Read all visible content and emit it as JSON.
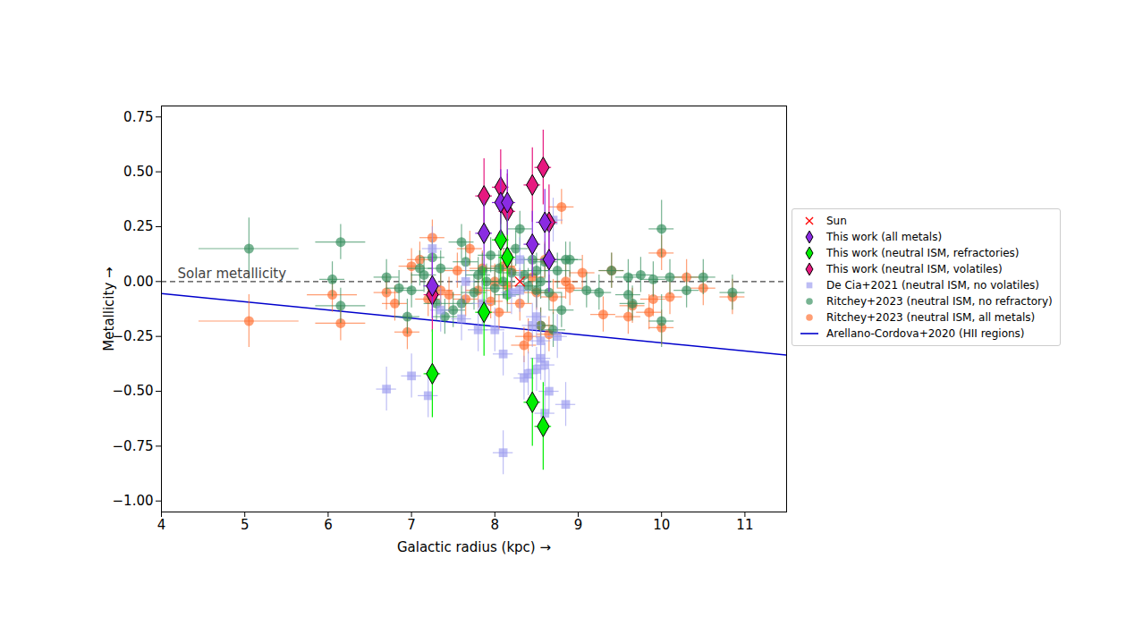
{
  "chart_data": {
    "type": "scatter",
    "xlabel": "Galactic radius (kpc)",
    "ylabel": "Metallicity",
    "xlim": [
      4,
      11.5
    ],
    "ylim": [
      -1.05,
      0.8
    ],
    "xticks": [
      4,
      5,
      6,
      7,
      8,
      9,
      10,
      11
    ],
    "yticks": [
      {
        "value": -1.0,
        "label": "−1.00"
      },
      {
        "value": -0.75,
        "label": "−0.75"
      },
      {
        "value": -0.5,
        "label": "−0.50"
      },
      {
        "value": -0.25,
        "label": "−0.25"
      },
      {
        "value": 0,
        "label": "0.00"
      },
      {
        "value": 0.25,
        "label": "0.25"
      },
      {
        "value": 0.5,
        "label": "0.50"
      },
      {
        "value": 0.75,
        "label": "0.75"
      }
    ],
    "grid": false,
    "legend": "right",
    "hline": {
      "y": 0,
      "label": "Solar metallicity"
    },
    "series": [
      {
        "name": "Sun",
        "marker": "x",
        "color": "#ff0000",
        "x": [
          8.3
        ],
        "values": [
          0
        ]
      },
      {
        "name": "This work (all metals)",
        "marker": "diamond",
        "color": "#8a2be2",
        "x": [
          7.25,
          7.87,
          8.07,
          8.15,
          8.45,
          8.6,
          8.65
        ],
        "values": [
          -0.02,
          0.22,
          0.36,
          0.36,
          0.17,
          0.27,
          0.1
        ],
        "xerr": 0.1,
        "yerr": 0.15
      },
      {
        "name": "This work (neutral ISM, refractories)",
        "marker": "diamond",
        "color": "#00ee00",
        "x": [
          7.25,
          7.87,
          8.07,
          8.15,
          8.45,
          8.58
        ],
        "values": [
          -0.42,
          -0.14,
          0.19,
          0.11,
          -0.55,
          -0.66
        ],
        "xerr": 0.1,
        "yerr": 0.2
      },
      {
        "name": "This work (neutral ISM, volatiles)",
        "marker": "diamond",
        "color": "#e6197f",
        "x": [
          7.25,
          7.87,
          8.07,
          8.15,
          8.45,
          8.58,
          8.65
        ],
        "values": [
          -0.06,
          0.39,
          0.43,
          0.32,
          0.44,
          0.52,
          0.27
        ],
        "xerr": 0.1,
        "yerr": 0.17
      },
      {
        "name": "De Cia+2021 (neutral ISM, no volatiles)",
        "marker": "square",
        "color": "#9999ee",
        "x": [
          6.7,
          7.0,
          7.2,
          7.25,
          7.35,
          7.6,
          7.65,
          7.8,
          7.85,
          8.0,
          8.1,
          8.1,
          8.2,
          8.3,
          8.3,
          8.35,
          8.4,
          8.45,
          8.5,
          8.5,
          8.55,
          8.55,
          8.6,
          8.6,
          8.65,
          8.7,
          8.75,
          8.85
        ],
        "values": [
          -0.49,
          -0.43,
          -0.52,
          0.15,
          -0.13,
          -0.17,
          0.0,
          -0.22,
          -0.1,
          -0.22,
          -0.33,
          -0.78,
          -0.05,
          -0.04,
          0.1,
          -0.44,
          -0.42,
          -0.2,
          -0.4,
          -0.16,
          -0.35,
          -0.27,
          -0.38,
          -0.6,
          -0.5,
          0.28,
          -0.25,
          -0.56
        ],
        "xerr": 0.12,
        "yerr": 0.1
      },
      {
        "name": "Ritchey+2023 (neutral ISM, no refractory)",
        "marker": "circle",
        "color": "#2e8b57",
        "x": [
          5.05,
          6.05,
          6.15,
          6.15,
          6.7,
          6.85,
          6.95,
          7.0,
          7.1,
          7.15,
          7.25,
          7.3,
          7.35,
          7.4,
          7.5,
          7.6,
          7.6,
          7.65,
          7.75,
          7.8,
          7.85,
          7.9,
          7.95,
          8.0,
          8.05,
          8.1,
          8.15,
          8.2,
          8.25,
          8.3,
          8.35,
          8.4,
          8.45,
          8.5,
          8.5,
          8.55,
          8.55,
          8.6,
          8.65,
          8.7,
          8.75,
          8.8,
          8.85,
          8.9,
          9.1,
          9.25,
          9.4,
          9.6,
          9.6,
          9.65,
          9.75,
          9.9,
          10.0,
          10.0,
          10.1,
          10.3,
          10.5,
          10.85
        ],
        "values": [
          0.15,
          0.01,
          0.18,
          -0.11,
          0.02,
          -0.03,
          -0.16,
          -0.04,
          0.06,
          0.03,
          0.11,
          -0.1,
          0.06,
          -0.16,
          -0.13,
          0.18,
          -0.1,
          0.09,
          -0.05,
          0.03,
          0.05,
          0.0,
          0.12,
          -0.03,
          0.06,
          0.0,
          -0.06,
          0.04,
          0.15,
          0.24,
          0.03,
          -0.02,
          0.1,
          0.05,
          -0.04,
          0.0,
          -0.2,
          0.09,
          -0.05,
          -0.22,
          0.05,
          -0.13,
          0.1,
          0.1,
          -0.04,
          -0.05,
          0.05,
          -0.06,
          0.02,
          -0.1,
          0.03,
          0.01,
          0.24,
          -0.18,
          0.02,
          -0.04,
          0.02,
          -0.05
        ],
        "xerr": [
          0.6,
          0.15,
          0.3,
          0.3,
          0.15,
          0.15,
          0.15,
          0.15,
          0.15,
          0.15,
          0.15,
          0.15,
          0.15,
          0.15,
          0.15,
          0.15,
          0.15,
          0.15,
          0.15,
          0.15,
          0.15,
          0.15,
          0.15,
          0.15,
          0.15,
          0.15,
          0.15,
          0.15,
          0.15,
          0.15,
          0.15,
          0.15,
          0.15,
          0.15,
          0.15,
          0.15,
          0.15,
          0.15,
          0.15,
          0.15,
          0.15,
          0.15,
          0.15,
          0.15,
          0.15,
          0.15,
          0.15,
          0.15,
          0.15,
          0.15,
          0.15,
          0.15,
          0.15,
          0.15,
          0.15,
          0.15,
          0.15,
          0.15
        ],
        "yerr": [
          0.14,
          0.08,
          0.08,
          0.08,
          0.08,
          0.08,
          0.08,
          0.08,
          0.08,
          0.08,
          0.08,
          0.08,
          0.08,
          0.08,
          0.08,
          0.08,
          0.08,
          0.08,
          0.08,
          0.08,
          0.08,
          0.08,
          0.08,
          0.08,
          0.08,
          0.08,
          0.08,
          0.08,
          0.08,
          0.08,
          0.08,
          0.08,
          0.08,
          0.08,
          0.08,
          0.08,
          0.08,
          0.08,
          0.08,
          0.08,
          0.08,
          0.08,
          0.08,
          0.08,
          0.08,
          0.08,
          0.08,
          0.08,
          0.08,
          0.08,
          0.08,
          0.08,
          0.13,
          0.12,
          0.08,
          0.08,
          0.08,
          0.08
        ]
      },
      {
        "name": "Ritchey+2023 (neutral ISM, all metals)",
        "marker": "circle",
        "color": "#ff6a2a",
        "x": [
          5.05,
          6.05,
          6.15,
          6.7,
          6.8,
          6.95,
          7.0,
          7.1,
          7.2,
          7.25,
          7.35,
          7.45,
          7.55,
          7.65,
          7.7,
          7.8,
          7.85,
          7.95,
          8.0,
          8.05,
          8.1,
          8.15,
          8.2,
          8.3,
          8.35,
          8.4,
          8.45,
          8.5,
          8.55,
          8.6,
          8.65,
          8.7,
          8.8,
          8.85,
          8.9,
          9.05,
          9.3,
          9.4,
          9.6,
          9.65,
          9.85,
          9.9,
          10.0,
          10.0,
          10.1,
          10.3,
          10.5,
          10.85
        ],
        "values": [
          -0.18,
          -0.06,
          -0.19,
          -0.05,
          -0.1,
          -0.23,
          0.07,
          0.1,
          -0.08,
          0.2,
          -0.04,
          -0.06,
          0.05,
          -0.08,
          0.15,
          -0.04,
          0.06,
          -0.09,
          0.0,
          -0.14,
          0.07,
          -0.02,
          0.05,
          -0.1,
          -0.29,
          -0.25,
          0.02,
          -0.05,
          -0.2,
          0.1,
          -0.24,
          -0.07,
          0.34,
          0.0,
          -0.03,
          0.04,
          -0.15,
          0.05,
          -0.16,
          -0.11,
          -0.14,
          -0.08,
          0.13,
          -0.21,
          -0.07,
          0.02,
          -0.03,
          -0.07
        ],
        "xerr": [
          0.6,
          0.3,
          0.3,
          0.15,
          0.15,
          0.15,
          0.15,
          0.15,
          0.15,
          0.15,
          0.15,
          0.15,
          0.15,
          0.15,
          0.15,
          0.15,
          0.15,
          0.15,
          0.15,
          0.15,
          0.15,
          0.15,
          0.15,
          0.15,
          0.15,
          0.15,
          0.15,
          0.15,
          0.15,
          0.15,
          0.15,
          0.15,
          0.15,
          0.15,
          0.15,
          0.15,
          0.15,
          0.15,
          0.15,
          0.15,
          0.15,
          0.15,
          0.15,
          0.15,
          0.15,
          0.15,
          0.15,
          0.15
        ],
        "yerr": [
          0.12,
          0.08,
          0.08,
          0.08,
          0.08,
          0.08,
          0.08,
          0.08,
          0.08,
          0.08,
          0.08,
          0.08,
          0.08,
          0.08,
          0.08,
          0.08,
          0.08,
          0.08,
          0.08,
          0.08,
          0.08,
          0.08,
          0.08,
          0.08,
          0.08,
          0.08,
          0.08,
          0.08,
          0.08,
          0.08,
          0.08,
          0.08,
          0.08,
          0.08,
          0.08,
          0.08,
          0.08,
          0.08,
          0.08,
          0.08,
          0.08,
          0.08,
          0.08,
          0.08,
          0.08,
          0.08,
          0.08,
          0.08
        ]
      },
      {
        "name": "Arellano-Cordova+2020 (HII regions)",
        "type": "line",
        "color": "#0000cc",
        "x": [
          4,
          11.5
        ],
        "values": [
          -0.055,
          -0.335
        ]
      }
    ]
  }
}
